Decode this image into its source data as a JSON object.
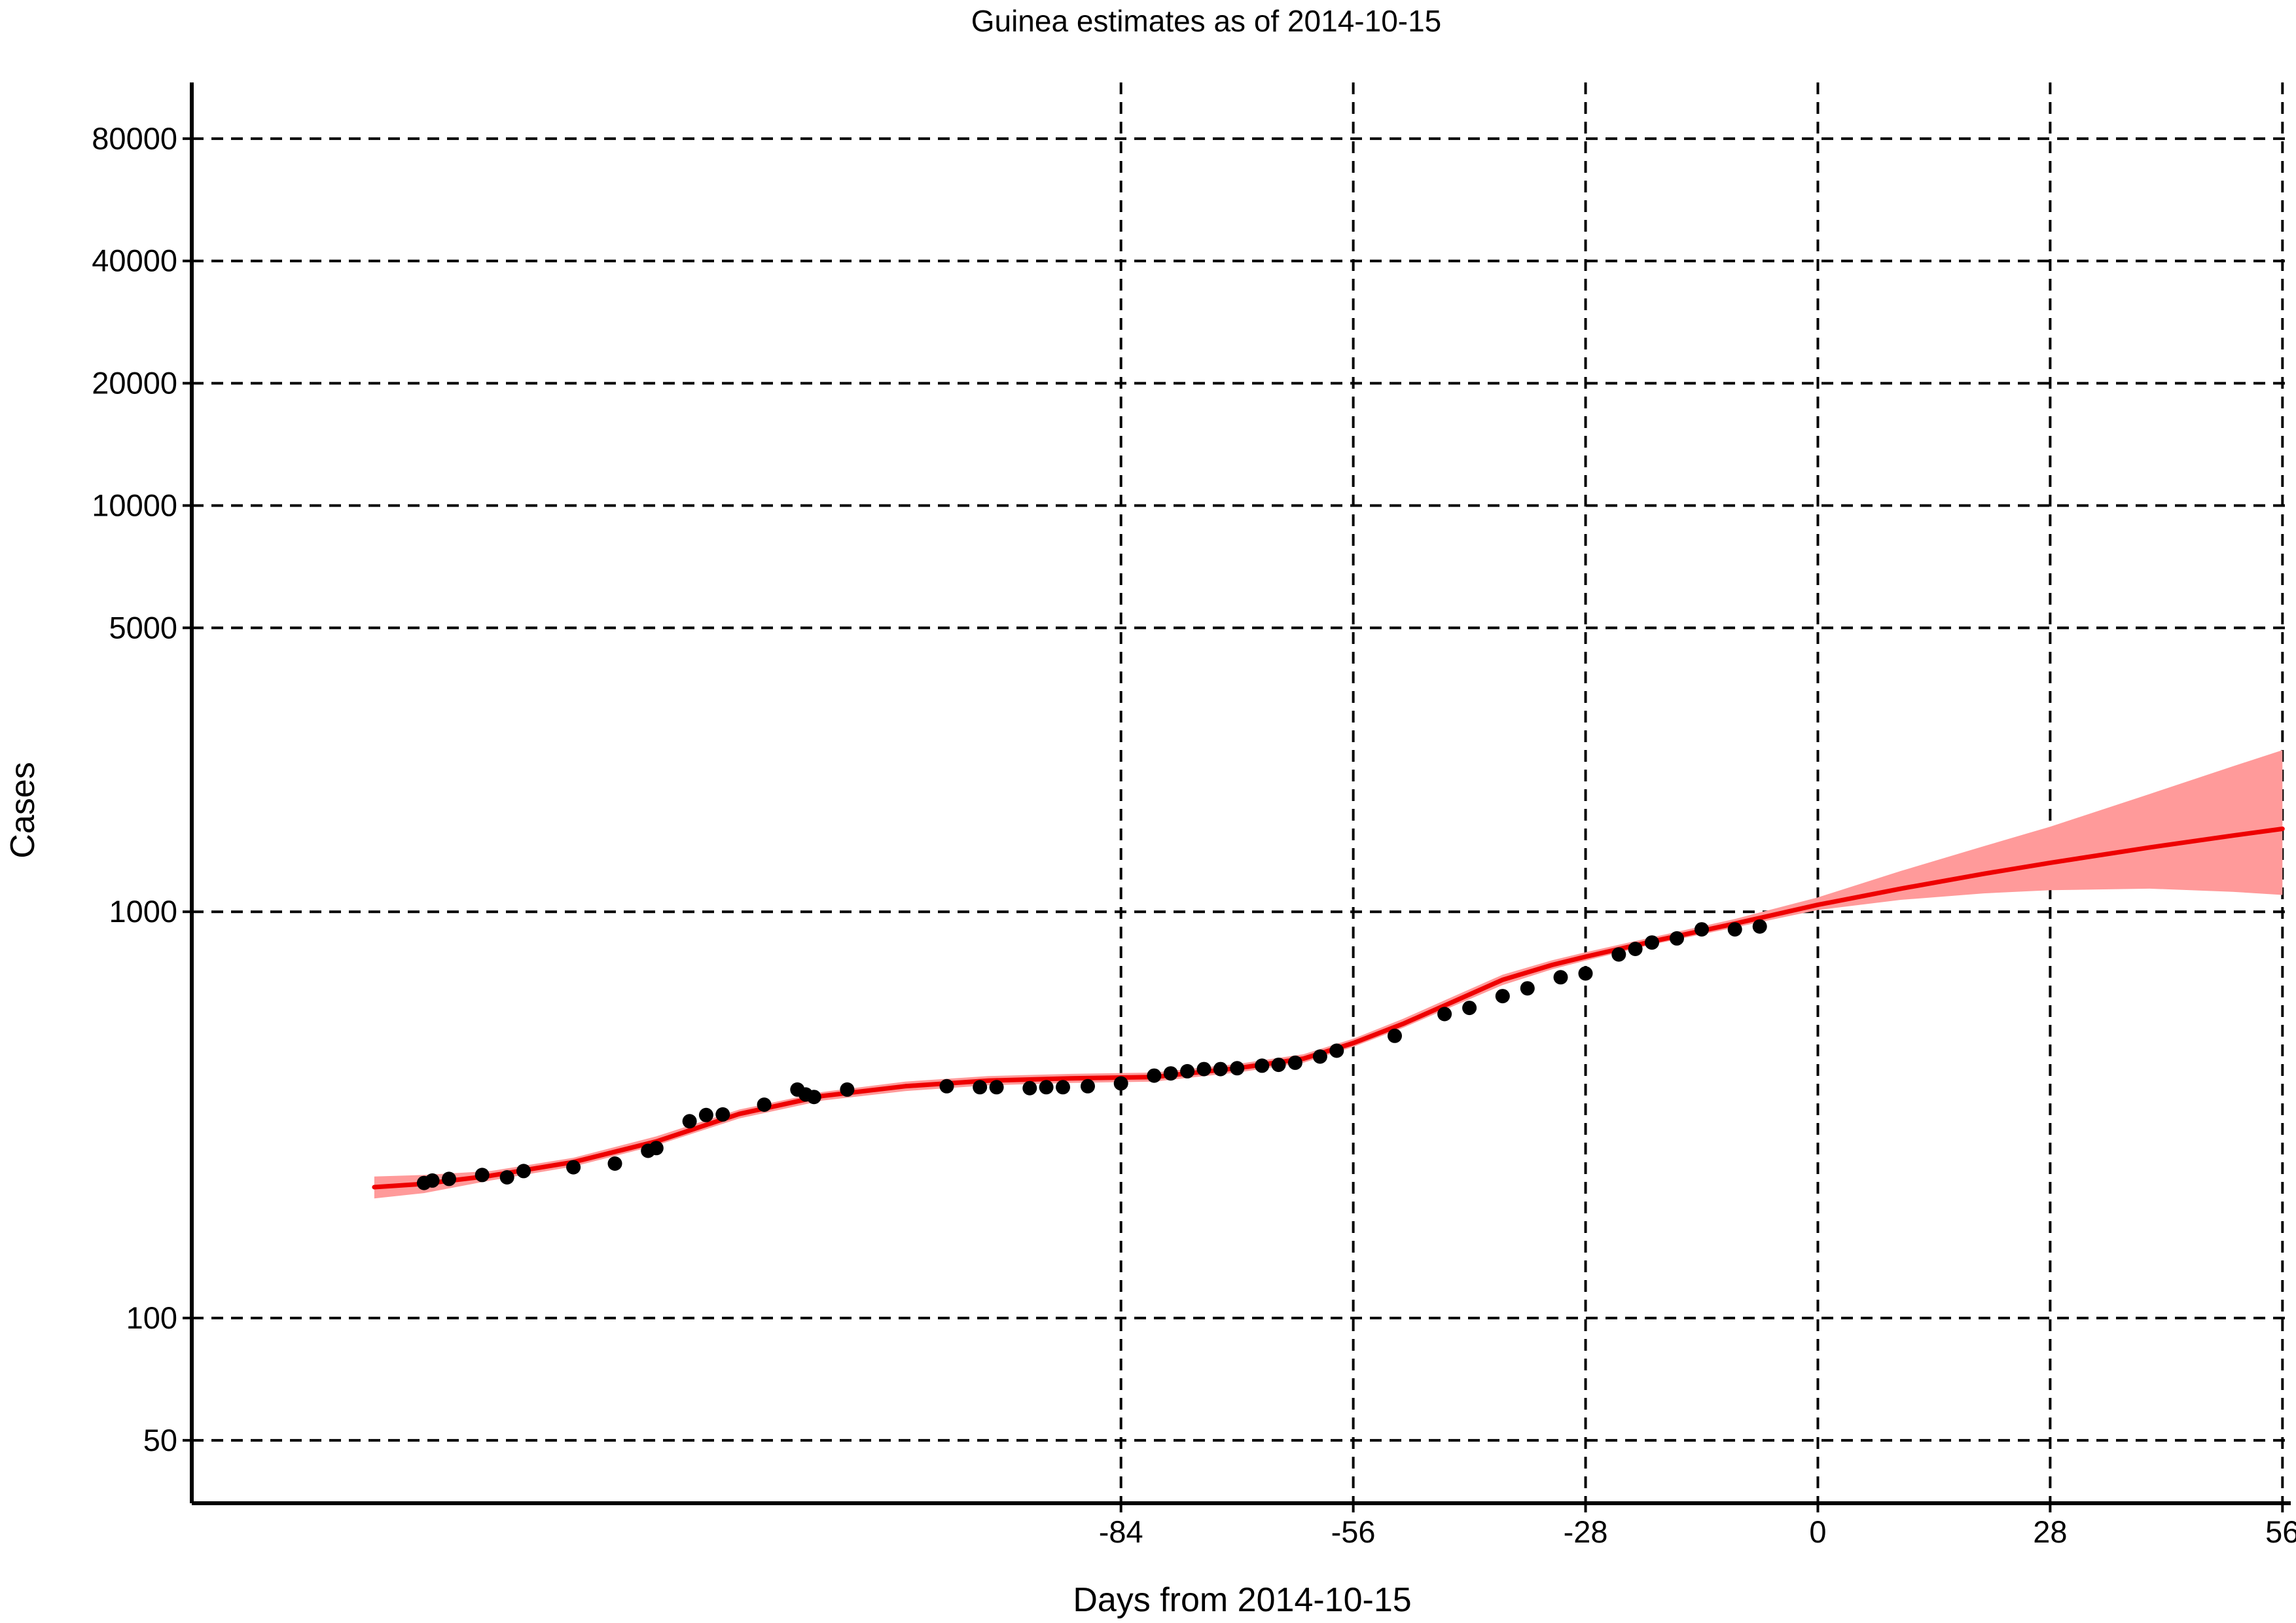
{
  "chart_data": {
    "type": "line",
    "title": "Guinea estimates as of 2014-10-15",
    "xlabel": "Days from 2014-10-15",
    "ylabel": "Cases",
    "y_scale": "log",
    "xlim": [
      -196,
      57
    ],
    "ylim": [
      35,
      110000
    ],
    "x_ticks": [
      -84,
      -56,
      -28,
      0,
      28,
      56
    ],
    "x_tick_labels": [
      "-84",
      "-56",
      "-28",
      "0",
      "28",
      "56"
    ],
    "y_ticks": [
      50,
      100,
      1000,
      5000,
      10000,
      20000,
      40000,
      80000
    ],
    "y_tick_labels": [
      "50",
      "100",
      "1000",
      "5000",
      "10000",
      "20000",
      "40000",
      "80000"
    ],
    "grid": true,
    "colors": {
      "fit": "#ee0000",
      "band": "#ff9a9a",
      "points": "#000000"
    },
    "series": [
      {
        "type": "scatter",
        "x": [
          -168,
          -167,
          -165,
          -161,
          -158,
          -156,
          -150,
          -145,
          -141,
          -140,
          -136,
          -134,
          -132,
          -127,
          -123,
          -122,
          -121,
          -117,
          -105,
          -101,
          -99,
          -95,
          -93,
          -91,
          -88,
          -84,
          -80,
          -78,
          -76,
          -74,
          -72,
          -70,
          -67,
          -65,
          -63,
          -60,
          -58,
          -51,
          -45,
          -42,
          -38,
          -35,
          -31,
          -28,
          -24,
          -22,
          -20,
          -17,
          -14,
          -10,
          -7
        ],
        "y": [
          215,
          218,
          220,
          225,
          222,
          230,
          235,
          240,
          258,
          262,
          305,
          316,
          317,
          335,
          365,
          355,
          350,
          365,
          372,
          370,
          370,
          368,
          370,
          370,
          372,
          378,
          395,
          400,
          405,
          410,
          410,
          412,
          418,
          420,
          425,
          440,
          455,
          495,
          560,
          580,
          620,
          648,
          690,
          705,
          785,
          810,
          840,
          860,
          905,
          905,
          920
        ]
      },
      {
        "type": "line",
        "x": [
          -174,
          -168,
          -160,
          -150,
          -140,
          -130,
          -120,
          -110,
          -100,
          -90,
          -80,
          -70,
          -62,
          -56,
          -50,
          -44,
          -38,
          -32,
          -28,
          -20,
          -10,
          0,
          10,
          20,
          28,
          40,
          50,
          56
        ],
        "y": [
          210,
          214,
          224,
          242,
          272,
          318,
          352,
          372,
          384,
          389,
          392,
          412,
          435,
          475,
          530,
          600,
          680,
          740,
          775,
          845,
          935,
          1040,
          1140,
          1240,
          1320,
          1440,
          1540,
          1600
        ],
        "band_lower": [
          197,
          203,
          218,
          236,
          266,
          310,
          343,
          362,
          374,
          379,
          382,
          402,
          425,
          465,
          518,
          585,
          660,
          722,
          758,
          830,
          915,
          1010,
          1070,
          1110,
          1130,
          1140,
          1120,
          1100
        ],
        "band_upper": [
          223,
          225,
          230,
          248,
          280,
          326,
          360,
          382,
          394,
          399,
          402,
          422,
          446,
          487,
          545,
          618,
          700,
          760,
          795,
          865,
          960,
          1085,
          1260,
          1450,
          1620,
          1950,
          2280,
          2500
        ]
      }
    ]
  }
}
